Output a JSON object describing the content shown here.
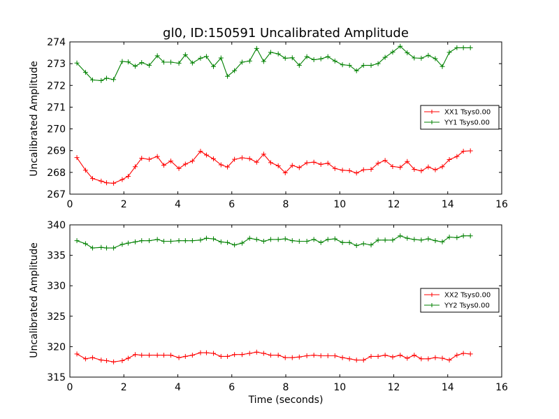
{
  "chart_data": [
    {
      "type": "line",
      "title": "gl0, ID:150591 Uncalibrated Amplitude",
      "xlabel": "",
      "ylabel": "Uncalibrated Amplitude",
      "xlim": [
        0,
        16
      ],
      "ylim": [
        267,
        274
      ],
      "xticks": [
        "0",
        "2",
        "4",
        "6",
        "8",
        "10",
        "12",
        "14",
        "16"
      ],
      "yticks": [
        "267",
        "268",
        "269",
        "270",
        "271",
        "272",
        "273",
        "274"
      ],
      "grid": false,
      "legend_position": "center-right",
      "x": [
        0.26,
        0.58,
        0.84,
        1.16,
        1.36,
        1.62,
        1.94,
        2.16,
        2.42,
        2.66,
        2.94,
        3.24,
        3.48,
        3.74,
        4.04,
        4.28,
        4.54,
        4.84,
        5.06,
        5.32,
        5.6,
        5.84,
        6.1,
        6.38,
        6.66,
        6.92,
        7.18,
        7.44,
        7.72,
        7.98,
        8.24,
        8.5,
        8.78,
        9.04,
        9.3,
        9.56,
        9.82,
        10.1,
        10.36,
        10.62,
        10.88,
        11.16,
        11.42,
        11.68,
        11.96,
        12.24,
        12.5,
        12.76,
        13.02,
        13.28,
        13.54,
        13.8,
        14.06,
        14.34,
        14.58,
        14.84
      ],
      "series": [
        {
          "name": "XX1 Tsys0.00",
          "color": "#ff0000",
          "values": [
            268.68,
            268.1,
            267.72,
            267.6,
            267.52,
            267.5,
            267.67,
            267.82,
            268.26,
            268.65,
            268.6,
            268.73,
            268.33,
            268.52,
            268.18,
            268.38,
            268.52,
            268.97,
            268.8,
            268.62,
            268.35,
            268.25,
            268.6,
            268.67,
            268.63,
            268.47,
            268.84,
            268.45,
            268.3,
            267.98,
            268.32,
            268.22,
            268.44,
            268.47,
            268.37,
            268.42,
            268.18,
            268.1,
            268.08,
            267.97,
            268.12,
            268.14,
            268.42,
            268.55,
            268.27,
            268.23,
            268.5,
            268.14,
            268.07,
            268.25,
            268.12,
            268.26,
            268.59,
            268.73,
            268.97,
            268.99
          ]
        },
        {
          "name": "YY1 Tsys0.00",
          "color": "#008000",
          "values": [
            273.03,
            272.6,
            272.25,
            272.22,
            272.33,
            272.27,
            273.1,
            273.08,
            272.88,
            273.05,
            272.92,
            273.36,
            273.07,
            273.07,
            273.02,
            273.41,
            273.03,
            273.25,
            273.33,
            272.87,
            273.26,
            272.42,
            272.68,
            273.07,
            273.12,
            273.7,
            273.1,
            273.52,
            273.45,
            273.25,
            273.27,
            272.92,
            273.32,
            273.18,
            273.22,
            273.32,
            273.12,
            272.95,
            272.92,
            272.67,
            272.92,
            272.92,
            273.0,
            273.29,
            273.53,
            273.8,
            273.5,
            273.26,
            273.25,
            273.38,
            273.23,
            272.87,
            273.52,
            273.73,
            273.73,
            273.73
          ]
        }
      ]
    },
    {
      "type": "line",
      "title": "",
      "xlabel": "Time (seconds)",
      "ylabel": "Uncalibrated Amplitude",
      "xlim": [
        0,
        16
      ],
      "ylim": [
        315,
        340
      ],
      "xticks": [
        "0",
        "2",
        "4",
        "6",
        "8",
        "10",
        "12",
        "14",
        "16"
      ],
      "yticks": [
        "315",
        "320",
        "325",
        "330",
        "335",
        "340"
      ],
      "grid": false,
      "legend_position": "center-right",
      "x": [
        0.26,
        0.58,
        0.84,
        1.16,
        1.36,
        1.62,
        1.94,
        2.16,
        2.42,
        2.66,
        2.94,
        3.24,
        3.48,
        3.74,
        4.04,
        4.28,
        4.54,
        4.84,
        5.06,
        5.32,
        5.6,
        5.84,
        6.1,
        6.38,
        6.66,
        6.92,
        7.18,
        7.44,
        7.72,
        7.98,
        8.24,
        8.5,
        8.78,
        9.04,
        9.3,
        9.56,
        9.82,
        10.1,
        10.36,
        10.62,
        10.88,
        11.16,
        11.42,
        11.68,
        11.96,
        12.24,
        12.5,
        12.76,
        13.02,
        13.28,
        13.54,
        13.8,
        14.06,
        14.34,
        14.58,
        14.84
      ],
      "series": [
        {
          "name": "XX2 Tsys0.00",
          "color": "#ff0000",
          "values": [
            318.8,
            318.0,
            318.2,
            317.8,
            317.7,
            317.5,
            317.7,
            318.1,
            318.7,
            318.6,
            318.6,
            318.6,
            318.6,
            318.6,
            318.2,
            318.4,
            318.6,
            319.0,
            319.0,
            318.9,
            318.4,
            318.4,
            318.7,
            318.7,
            318.9,
            319.1,
            318.9,
            318.6,
            318.6,
            318.2,
            318.2,
            318.3,
            318.5,
            318.6,
            318.5,
            318.5,
            318.5,
            318.2,
            318.0,
            317.8,
            317.8,
            318.4,
            318.4,
            318.6,
            318.3,
            318.6,
            318.1,
            318.6,
            318.0,
            318.0,
            318.2,
            318.1,
            317.8,
            318.6,
            318.9,
            318.8
          ]
        },
        {
          "name": "YY2 Tsys0.00",
          "color": "#008000",
          "values": [
            337.4,
            336.9,
            336.2,
            336.3,
            336.2,
            336.2,
            336.8,
            337.0,
            337.2,
            337.4,
            337.4,
            337.6,
            337.3,
            337.3,
            337.4,
            337.4,
            337.4,
            337.5,
            337.8,
            337.7,
            337.2,
            337.1,
            336.7,
            337.0,
            337.8,
            337.6,
            337.3,
            337.6,
            337.6,
            337.7,
            337.4,
            337.3,
            337.3,
            337.6,
            337.1,
            337.6,
            337.7,
            337.1,
            337.1,
            336.6,
            336.9,
            336.7,
            337.5,
            337.5,
            337.5,
            338.2,
            337.8,
            337.6,
            337.5,
            337.7,
            337.4,
            337.2,
            338.0,
            337.9,
            338.2,
            338.2
          ]
        }
      ]
    }
  ]
}
